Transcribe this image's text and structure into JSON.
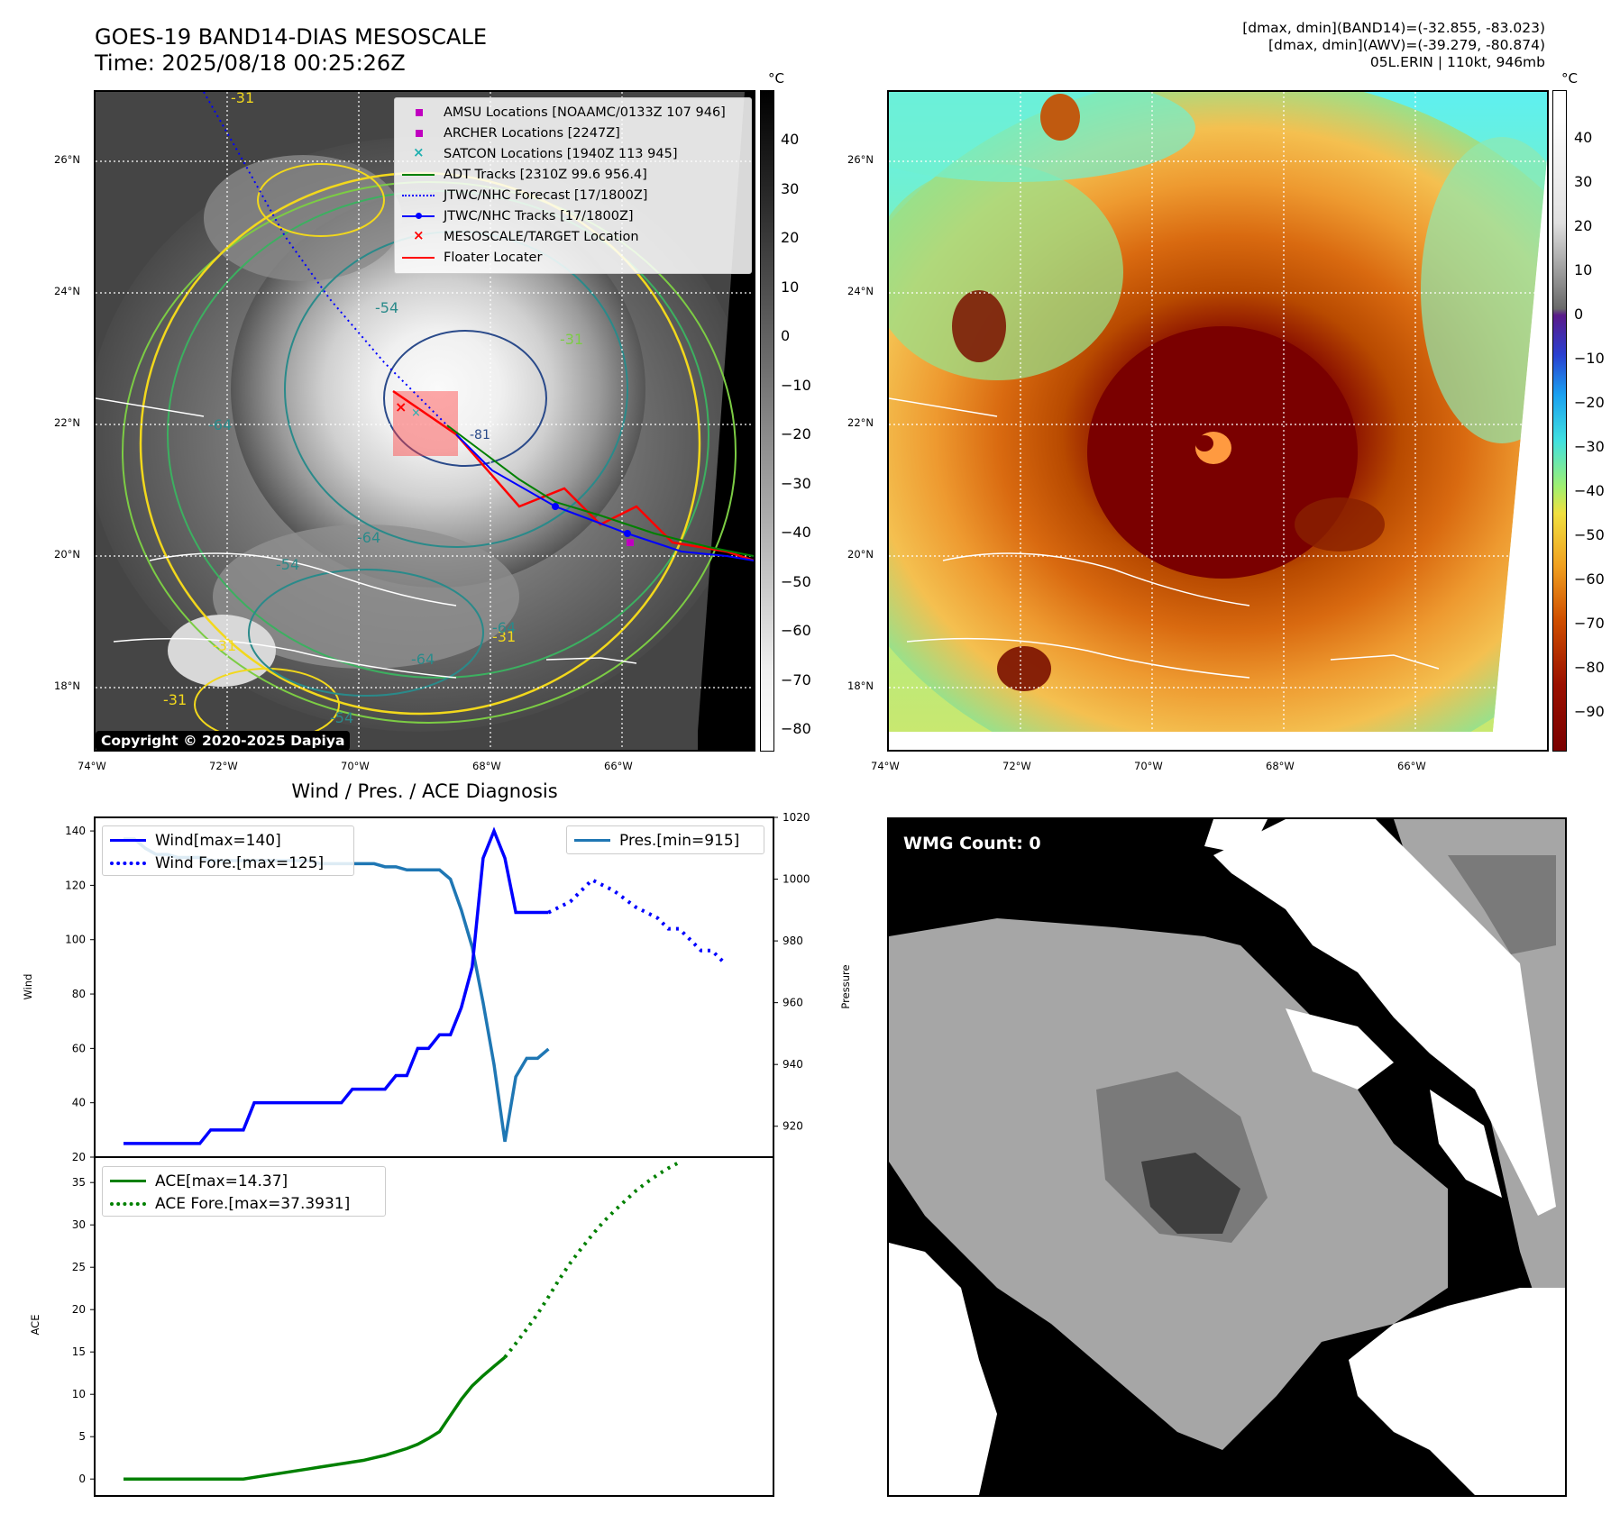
{
  "header": {
    "title_line1": "GOES-19 BAND14-DIAS MESOSCALE",
    "title_line2": "Time: 2025/08/18 00:25:26Z",
    "info_line1": "[dmax, dmin](BAND14)=(-32.855, -83.023)",
    "info_line2": "[dmax, dmin](AWV)=(-39.279, -80.874)",
    "info_line3": "05L.ERIN | 110kt, 946mb"
  },
  "map_axes": {
    "lon_ticks": [
      "74°W",
      "72°W",
      "70°W",
      "68°W",
      "66°W"
    ],
    "lat_ticks": [
      "26°N",
      "24°N",
      "22°N",
      "20°N",
      "18°N"
    ]
  },
  "ir_panel": {
    "copyright": "Copyright © 2020-2025 Dapiya",
    "contour_labels": [
      "-31",
      "-54",
      "-64",
      "-81"
    ],
    "legend": [
      {
        "label": "AMSU Locations [NOAAMC/0133Z 107 946]",
        "color": "#c000c0",
        "symbol": "square"
      },
      {
        "label": "ARCHER Locations [2247Z]",
        "color": "#c000c0",
        "symbol": "square"
      },
      {
        "label": "SATCON Locations [1940Z 113 945]",
        "color": "#20b0b0",
        "symbol": "x"
      },
      {
        "label": "ADT Tracks [2310Z 99.6 956.4]",
        "color": "#008000",
        "symbol": "line"
      },
      {
        "label": "JTWC/NHC Forecast [17/1800Z]",
        "color": "#0000ff",
        "symbol": "dotted"
      },
      {
        "label": "JTWC/NHC Tracks [17/1800Z]",
        "color": "#0000ff",
        "symbol": "line-dot"
      },
      {
        "label": "MESOSCALE/TARGET Location",
        "color": "#ff0000",
        "symbol": "x"
      },
      {
        "label": "Floater Locater",
        "color": "#ff0000",
        "symbol": "line"
      }
    ]
  },
  "colorbar_gray": {
    "unit": "°C",
    "ticks": [
      "40",
      "30",
      "20",
      "10",
      "0",
      "−10",
      "−20",
      "−30",
      "−40",
      "−50",
      "−60",
      "−70",
      "−80"
    ]
  },
  "colorbar_color": {
    "unit": "°C",
    "ticks": [
      "40",
      "30",
      "20",
      "10",
      "0",
      "−10",
      "−20",
      "−30",
      "−40",
      "−50",
      "−60",
      "−70",
      "−80",
      "−90"
    ]
  },
  "wmg_panel": {
    "label": "WMG Count: 0"
  },
  "chart_data": [
    {
      "type": "line",
      "title": "Wind / Pres. / ACE Diagnosis",
      "ylabel": "Wind",
      "ylabel_right": "Pressure",
      "ylim": [
        20,
        145
      ],
      "ylim_right": [
        910,
        1020
      ],
      "yticks": [
        "140",
        "120",
        "100",
        "80",
        "60",
        "40",
        "20"
      ],
      "yticks_right": [
        "1020",
        "1000",
        "980",
        "960",
        "940",
        "920"
      ],
      "legend_left": [
        "Wind[max=140]",
        "Wind Fore.[max=125]"
      ],
      "legend_right": [
        "Pres.[min=915]"
      ],
      "series": [
        {
          "name": "Wind[max=140]",
          "color": "#0000ff",
          "style": "solid",
          "values": [
            25,
            25,
            25,
            25,
            25,
            25,
            25,
            25,
            30,
            30,
            30,
            30,
            40,
            40,
            40,
            40,
            40,
            40,
            40,
            40,
            40,
            45,
            45,
            45,
            45,
            50,
            50,
            60,
            60,
            65,
            65,
            75,
            90,
            130,
            140,
            130,
            110,
            110,
            110,
            110
          ]
        },
        {
          "name": "Wind Fore.[max=125]",
          "color": "#0000ff",
          "style": "dotted",
          "x": [
            39,
            40,
            41,
            42,
            43,
            44,
            45,
            46,
            47,
            48,
            49,
            50,
            51,
            52,
            53,
            54,
            55
          ],
          "values": [
            110,
            112,
            114,
            118,
            122,
            120,
            118,
            115,
            112,
            110,
            108,
            104,
            104,
            100,
            96,
            96,
            92
          ]
        },
        {
          "name": "Pres.[min=915]",
          "color": "#1f77b4",
          "style": "solid",
          "axis": "right",
          "values": [
            1013,
            1013,
            1010,
            1008,
            1008,
            1007,
            1007,
            1007,
            1006,
            1006,
            1006,
            1006,
            1006,
            1006,
            1006,
            1006,
            1006,
            1006,
            1005,
            1005,
            1005,
            1005,
            1005,
            1005,
            1004,
            1004,
            1003,
            1003,
            1003,
            1003,
            1000,
            990,
            978,
            960,
            940,
            915,
            936,
            942,
            942,
            945
          ]
        }
      ]
    },
    {
      "type": "line",
      "ylabel": "ACE",
      "ylim": [
        -2,
        38
      ],
      "yticks": [
        "35",
        "30",
        "25",
        "20",
        "15",
        "10",
        "5",
        "0"
      ],
      "legend": [
        "ACE[max=14.37]",
        "ACE Fore.[max=37.3931]"
      ],
      "series": [
        {
          "name": "ACE[max=14.37]",
          "color": "#008000",
          "style": "solid",
          "values": [
            0,
            0,
            0,
            0,
            0,
            0,
            0,
            0,
            0,
            0,
            0,
            0,
            0.2,
            0.4,
            0.6,
            0.8,
            1.0,
            1.2,
            1.4,
            1.6,
            1.8,
            2.0,
            2.2,
            2.5,
            2.8,
            3.2,
            3.6,
            4.1,
            4.8,
            5.6,
            7.5,
            9.4,
            11.0,
            12.2,
            13.3,
            14.37
          ]
        },
        {
          "name": "ACE Fore.[max=37.3931]",
          "color": "#008000",
          "style": "dotted",
          "x": [
            35,
            36,
            37,
            38,
            39,
            40,
            41,
            42,
            43,
            44,
            45,
            46,
            47,
            48,
            49,
            50,
            51
          ],
          "values": [
            14.37,
            16.0,
            17.7,
            19.5,
            21.5,
            23.6,
            25.5,
            27.2,
            28.8,
            30.3,
            31.6,
            32.8,
            34.0,
            35.0,
            35.9,
            36.7,
            37.39
          ]
        }
      ]
    }
  ]
}
